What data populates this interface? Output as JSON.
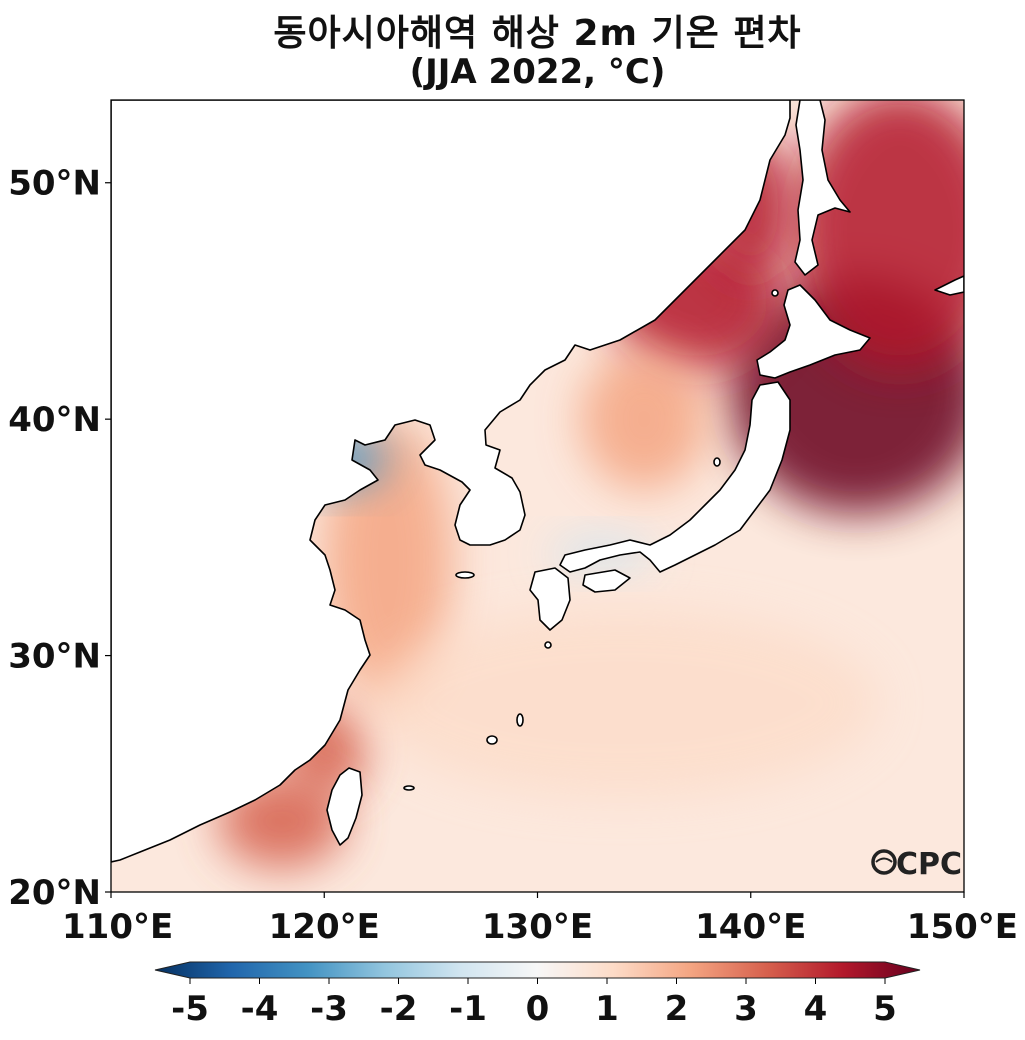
{
  "title": {
    "line1": "동아시아해역 해상 2m 기온 편차",
    "line2": "(JJA 2022, °C)"
  },
  "map": {
    "lon_range": [
      110,
      150
    ],
    "lat_range": [
      20,
      53.5
    ],
    "x_ticks": [
      "110°E",
      "120°E",
      "130°E",
      "140°E",
      "150°E"
    ],
    "y_ticks": [
      "20°N",
      "30°N",
      "40°N",
      "50°N"
    ],
    "logo_text": "CPC",
    "anomaly_blobs": [
      {
        "lon": 145,
        "lat": 41,
        "rx": 6,
        "ry": 5,
        "value": 5
      },
      {
        "lon": 147,
        "lat": 48,
        "rx": 5,
        "ry": 6,
        "value": 4
      },
      {
        "lon": 137.5,
        "lat": 45,
        "rx": 4,
        "ry": 3,
        "value": 4
      },
      {
        "lon": 140,
        "lat": 49,
        "rx": 2,
        "ry": 3,
        "value": 4
      },
      {
        "lon": 135,
        "lat": 40,
        "rx": 3,
        "ry": 3,
        "value": 2
      },
      {
        "lon": 120,
        "lat": 26,
        "rx": 2,
        "ry": 2,
        "value": 3
      },
      {
        "lon": 118,
        "lat": 23,
        "rx": 3,
        "ry": 2,
        "value": 3
      },
      {
        "lon": 123,
        "lat": 34,
        "rx": 3,
        "ry": 6,
        "value": 2
      },
      {
        "lon": 120.5,
        "lat": 38.3,
        "rx": 2.5,
        "ry": 1.2,
        "value": -3
      },
      {
        "lon": 133,
        "lat": 34.3,
        "rx": 2.5,
        "ry": 0.8,
        "value": -1.5
      },
      {
        "lon": 134,
        "lat": 28,
        "rx": 12,
        "ry": 4,
        "value": 1
      }
    ]
  },
  "colorbar": {
    "ticks": [
      "-5",
      "-4",
      "-3",
      "-2",
      "-1",
      "0",
      "1",
      "2",
      "3",
      "4",
      "5"
    ],
    "colors": [
      "#053061",
      "#2166ac",
      "#4393c3",
      "#92c5de",
      "#d1e5f0",
      "#f7f7f7",
      "#fddbc7",
      "#f4a582",
      "#d6604d",
      "#b2182b",
      "#67001f"
    ]
  }
}
